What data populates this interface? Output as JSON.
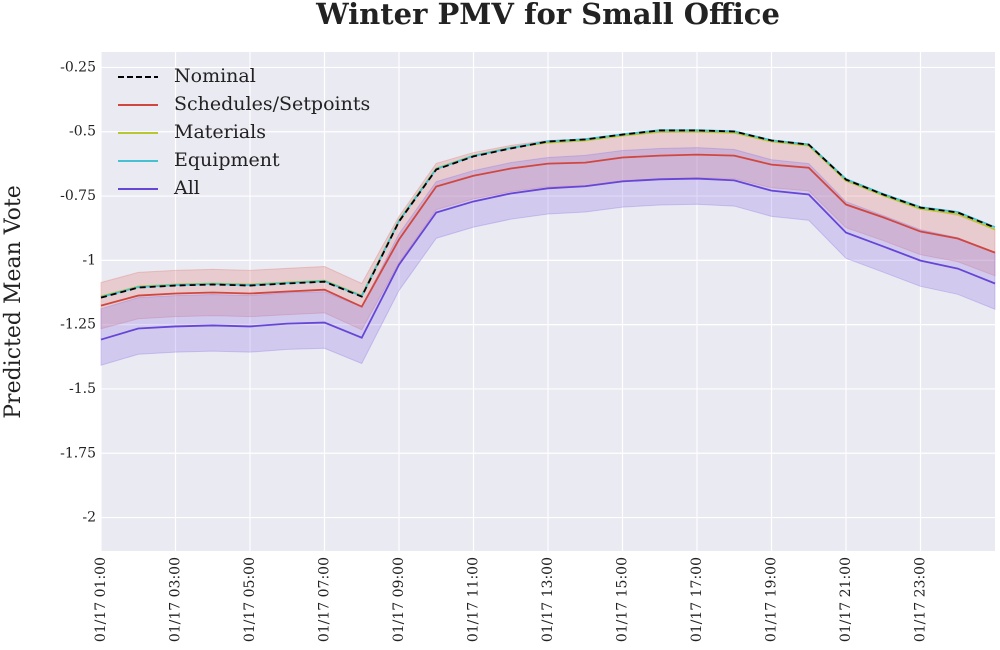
{
  "chart_data": {
    "type": "line",
    "title": "Winter PMV for Small Office",
    "y_label": "Predicted Mean Vote",
    "x": [
      1,
      2,
      3,
      4,
      5,
      6,
      7,
      8,
      9,
      10,
      11,
      12,
      13,
      14,
      15,
      16,
      17,
      18,
      19,
      20,
      21,
      22,
      23,
      24,
      25
    ],
    "xlim": [
      1,
      25
    ],
    "xticks": [
      {
        "value": 1,
        "label": "01/17  01:00"
      },
      {
        "value": 3,
        "label": "01/17  03:00"
      },
      {
        "value": 5,
        "label": "01/17  05:00"
      },
      {
        "value": 7,
        "label": "01/17  07:00"
      },
      {
        "value": 9,
        "label": "01/17  09:00"
      },
      {
        "value": 11,
        "label": "01/17  11:00"
      },
      {
        "value": 13,
        "label": "01/17  13:00"
      },
      {
        "value": 15,
        "label": "01/17  15:00"
      },
      {
        "value": 17,
        "label": "01/17  17:00"
      },
      {
        "value": 19,
        "label": "01/17  19:00"
      },
      {
        "value": 21,
        "label": "01/17  21:00"
      },
      {
        "value": 23,
        "label": "01/17  23:00"
      }
    ],
    "ylim": [
      -2.13,
      -0.19
    ],
    "yticks": [
      -2.0,
      -1.75,
      -1.5,
      -1.25,
      -1.0,
      -0.75,
      -0.5,
      -0.25
    ],
    "grid": true,
    "legend": "upper-left",
    "series": [
      {
        "name": "Nominal",
        "color": "#000000",
        "dashed": true,
        "values": [
          -1.145,
          -1.106,
          -1.098,
          -1.094,
          -1.098,
          -1.09,
          -1.083,
          -1.141,
          -0.849,
          -0.647,
          -0.596,
          -0.565,
          -0.538,
          -0.53,
          -0.511,
          -0.495,
          -0.495,
          -0.499,
          -0.534,
          -0.55,
          -0.686,
          -0.744,
          -0.795,
          -0.814,
          -0.873
        ]
      },
      {
        "name": "Schedules/Setpoints",
        "color": "#d0473f",
        "band_color": "#e07b75",
        "values": [
          -1.176,
          -1.137,
          -1.129,
          -1.125,
          -1.129,
          -1.121,
          -1.114,
          -1.18,
          -0.919,
          -0.713,
          -0.671,
          -0.643,
          -0.624,
          -0.62,
          -0.6,
          -0.593,
          -0.589,
          -0.593,
          -0.628,
          -0.64,
          -0.783,
          -0.833,
          -0.888,
          -0.915,
          -0.97
        ],
        "lower": [
          -1.266,
          -1.227,
          -1.219,
          -1.215,
          -1.219,
          -1.211,
          -1.204,
          -1.27,
          -1.009,
          -0.803,
          -0.761,
          -0.733,
          -0.714,
          -0.71,
          -0.69,
          -0.683,
          -0.679,
          -0.683,
          -0.718,
          -0.73,
          -0.873,
          -0.923,
          -0.978,
          -1.005,
          -1.06
        ],
        "upper": [
          -1.086,
          -1.047,
          -1.039,
          -1.035,
          -1.039,
          -1.031,
          -1.024,
          -1.09,
          -0.829,
          -0.623,
          -0.581,
          -0.553,
          -0.534,
          -0.53,
          -0.51,
          -0.503,
          -0.499,
          -0.503,
          -0.538,
          -0.55,
          -0.693,
          -0.743,
          -0.798,
          -0.825,
          -0.88
        ]
      },
      {
        "name": "Materials",
        "color": "#b8c632",
        "values": [
          -1.14,
          -1.102,
          -1.094,
          -1.09,
          -1.094,
          -1.086,
          -1.079,
          -1.137,
          -0.845,
          -0.643,
          -0.593,
          -0.562,
          -0.542,
          -0.534,
          -0.515,
          -0.5,
          -0.5,
          -0.504,
          -0.538,
          -0.554,
          -0.69,
          -0.748,
          -0.8,
          -0.82,
          -0.88
        ]
      },
      {
        "name": "Equipment",
        "color": "#45c1d2",
        "values": [
          -1.143,
          -1.104,
          -1.096,
          -1.092,
          -1.096,
          -1.088,
          -1.081,
          -1.139,
          -0.847,
          -0.645,
          -0.594,
          -0.563,
          -0.537,
          -0.529,
          -0.51,
          -0.494,
          -0.494,
          -0.498,
          -0.533,
          -0.549,
          -0.684,
          -0.742,
          -0.793,
          -0.812,
          -0.871
        ]
      },
      {
        "name": "All",
        "color": "#6646d6",
        "band_color": "#8f78e6",
        "values": [
          -1.308,
          -1.265,
          -1.257,
          -1.253,
          -1.257,
          -1.246,
          -1.242,
          -1.301,
          -1.017,
          -0.814,
          -0.771,
          -0.74,
          -0.72,
          -0.712,
          -0.693,
          -0.685,
          -0.682,
          -0.689,
          -0.729,
          -0.744,
          -0.892,
          -0.946,
          -1.001,
          -1.032,
          -1.09
        ],
        "lower": [
          -1.408,
          -1.365,
          -1.357,
          -1.353,
          -1.357,
          -1.346,
          -1.342,
          -1.401,
          -1.117,
          -0.914,
          -0.871,
          -0.84,
          -0.82,
          -0.812,
          -0.793,
          -0.785,
          -0.782,
          -0.789,
          -0.829,
          -0.844,
          -0.992,
          -1.046,
          -1.101,
          -1.132,
          -1.19
        ],
        "upper": [
          -1.188,
          -1.145,
          -1.137,
          -1.133,
          -1.137,
          -1.126,
          -1.122,
          -1.181,
          -0.897,
          -0.694,
          -0.651,
          -0.62,
          -0.6,
          -0.592,
          -0.573,
          -0.565,
          -0.562,
          -0.569,
          -0.609,
          -0.624,
          -0.772,
          -0.826,
          -0.881,
          -0.912,
          -0.97
        ]
      }
    ]
  }
}
